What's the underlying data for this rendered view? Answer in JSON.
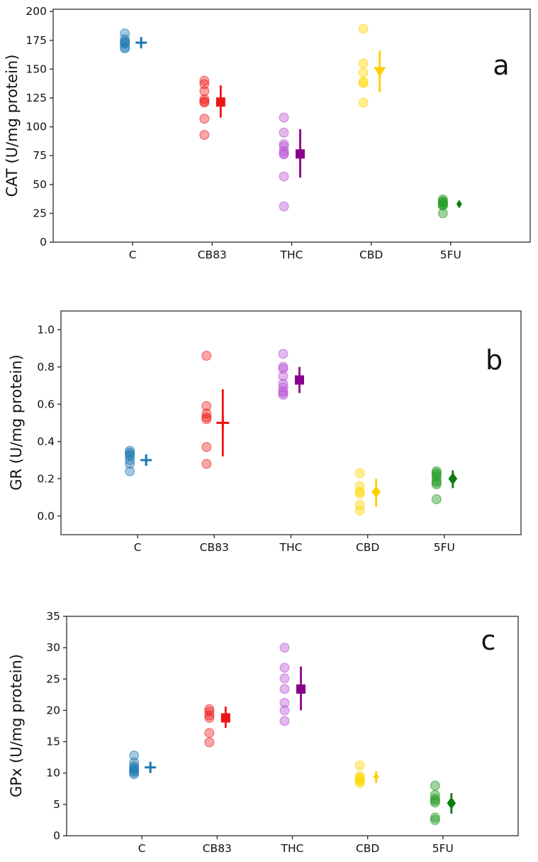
{
  "chart_data": [
    {
      "type": "scatter",
      "panel_label": "a",
      "ylabel": "CAT (U/mg protein)",
      "xlabel": "",
      "ylim": [
        0,
        200
      ],
      "yticks": [
        0,
        25,
        50,
        75,
        100,
        125,
        150,
        175,
        200
      ],
      "ytick_labels": [
        "0",
        "25",
        "50",
        "75",
        "100",
        "125",
        "150",
        "175",
        "200"
      ],
      "categories": [
        "C",
        "CB83",
        "THC",
        "CBD",
        "5FU"
      ],
      "grid": false,
      "legend": "none",
      "series": [
        {
          "name": "C",
          "scatter_color": "#1f77b4",
          "mean_color": "#1f77b4",
          "alpha": 0.4,
          "marker": "plus",
          "marker_size": 16,
          "points": [
            181,
            176,
            174,
            173,
            172,
            169,
            168
          ],
          "mean": 173,
          "ci": [
            170.5,
            176
          ]
        },
        {
          "name": "CB83",
          "scatter_color": "#f01414",
          "mean_color": "#f01414",
          "alpha": 0.38,
          "marker": "square",
          "marker_size": 13,
          "points": [
            140,
            137,
            131,
            124,
            122,
            121,
            107,
            93
          ],
          "mean": 121.5,
          "ci": [
            108,
            136
          ]
        },
        {
          "name": "THC",
          "scatter_color": "#ba55d3",
          "mean_color": "#8b008b",
          "alpha": 0.42,
          "marker": "square",
          "marker_size": 13,
          "points": [
            108,
            95,
            85,
            83,
            79,
            77,
            76,
            57,
            31
          ],
          "mean": 76.5,
          "ci": [
            56,
            98
          ]
        },
        {
          "name": "CBD",
          "scatter_color": "#ffd700",
          "mean_color": "#ffce00",
          "alpha": 0.42,
          "marker": "triangle-down",
          "marker_size": 14,
          "points": [
            185,
            155,
            147,
            139,
            138,
            121
          ],
          "mean": 148,
          "ci": [
            130,
            166
          ]
        },
        {
          "name": "5FU",
          "scatter_color": "#2ca02c",
          "mean_color": "#0a7d0a",
          "alpha": 0.45,
          "marker": "diamond",
          "marker_size": 9,
          "points": [
            37,
            35.5,
            34.5,
            34,
            33,
            32.5,
            31.5,
            25
          ],
          "mean": 33,
          "ci": [
            30,
            36
          ]
        }
      ]
    },
    {
      "type": "scatter",
      "panel_label": "b",
      "ylabel": "GR (U/mg protein)",
      "xlabel": "",
      "ylim": [
        0.0,
        1.0
      ],
      "yticks": [
        0.0,
        0.2,
        0.4,
        0.6,
        0.8,
        1.0
      ],
      "ytick_labels": [
        "0.0",
        "0.2",
        "0.4",
        "0.6",
        "0.8",
        "1.0"
      ],
      "categories": [
        "C",
        "CB83",
        "THC",
        "CBD",
        "5FU"
      ],
      "grid": false,
      "legend": "none",
      "series": [
        {
          "name": "C",
          "scatter_color": "#1f77b4",
          "mean_color": "#1f77b4",
          "alpha": 0.4,
          "marker": "plus",
          "marker_size": 16,
          "points": [
            0.35,
            0.34,
            0.33,
            0.32,
            0.3,
            0.28,
            0.24
          ],
          "mean": 0.3,
          "ci": [
            0.27,
            0.33
          ]
        },
        {
          "name": "CB83",
          "scatter_color": "#f01414",
          "mean_color": "#f01414",
          "alpha": 0.38,
          "marker": "plus",
          "marker_size": 18,
          "points": [
            0.86,
            0.59,
            0.55,
            0.53,
            0.52,
            0.37,
            0.28
          ],
          "mean": 0.5,
          "ci": [
            0.32,
            0.68
          ]
        },
        {
          "name": "THC",
          "scatter_color": "#ba55d3",
          "mean_color": "#8b008b",
          "alpha": 0.42,
          "marker": "square",
          "marker_size": 13,
          "points": [
            0.87,
            0.8,
            0.79,
            0.75,
            0.71,
            0.69,
            0.67,
            0.66,
            0.65
          ],
          "mean": 0.73,
          "ci": [
            0.66,
            0.8
          ]
        },
        {
          "name": "CBD",
          "scatter_color": "#ffd700",
          "mean_color": "#ffce00",
          "alpha": 0.42,
          "marker": "diamond",
          "marker_size": 14,
          "points": [
            0.23,
            0.16,
            0.13,
            0.12,
            0.06,
            0.03
          ],
          "mean": 0.13,
          "ci": [
            0.05,
            0.2
          ]
        },
        {
          "name": "5FU",
          "scatter_color": "#2ca02c",
          "mean_color": "#0a7d0a",
          "alpha": 0.45,
          "marker": "diamond",
          "marker_size": 14,
          "points": [
            0.24,
            0.23,
            0.22,
            0.21,
            0.19,
            0.18,
            0.17,
            0.09
          ],
          "mean": 0.2,
          "ci": [
            0.15,
            0.245
          ]
        }
      ]
    },
    {
      "type": "scatter",
      "panel_label": "c",
      "ylabel": "GPx (U/mg protein)",
      "xlabel": "",
      "ylim": [
        0,
        35
      ],
      "yticks": [
        0,
        5,
        10,
        15,
        20,
        25,
        30,
        35
      ],
      "ytick_labels": [
        "0",
        "5",
        "10",
        "15",
        "20",
        "25",
        "30",
        "35"
      ],
      "categories": [
        "C",
        "CB83",
        "THC",
        "CBD",
        "5FU"
      ],
      "grid": false,
      "legend": "none",
      "series": [
        {
          "name": "C",
          "scatter_color": "#1f77b4",
          "mean_color": "#1f77b4",
          "alpha": 0.4,
          "marker": "plus",
          "marker_size": 16,
          "points": [
            12.8,
            11.7,
            11.1,
            10.8,
            10.6,
            10.3,
            10.1,
            9.8
          ],
          "mean": 10.9,
          "ci": [
            10.3,
            11.5
          ]
        },
        {
          "name": "CB83",
          "scatter_color": "#f01414",
          "mean_color": "#f01414",
          "alpha": 0.38,
          "marker": "square",
          "marker_size": 13,
          "points": [
            20.2,
            19.8,
            19.2,
            18.8,
            16.4,
            14.9
          ],
          "mean": 18.8,
          "ci": [
            17.2,
            20.6
          ]
        },
        {
          "name": "THC",
          "scatter_color": "#ba55d3",
          "mean_color": "#8b008b",
          "alpha": 0.42,
          "marker": "square",
          "marker_size": 13,
          "points": [
            30.0,
            26.8,
            25.1,
            23.4,
            21.2,
            20.0,
            18.3
          ],
          "mean": 23.4,
          "ci": [
            20.0,
            27.0
          ]
        },
        {
          "name": "CBD",
          "scatter_color": "#ffd700",
          "mean_color": "#ffce00",
          "alpha": 0.42,
          "marker": "diamond",
          "marker_size": 9,
          "points": [
            11.2,
            9.5,
            9.2,
            9.0,
            8.7,
            8.4
          ],
          "mean": 9.4,
          "ci": [
            8.4,
            10.3
          ]
        },
        {
          "name": "5FU",
          "scatter_color": "#2ca02c",
          "mean_color": "#0a7d0a",
          "alpha": 0.45,
          "marker": "diamond",
          "marker_size": 14,
          "points": [
            8.0,
            6.5,
            5.9,
            5.6,
            5.3,
            2.9,
            2.5
          ],
          "mean": 5.2,
          "ci": [
            3.5,
            6.8
          ]
        }
      ]
    }
  ]
}
